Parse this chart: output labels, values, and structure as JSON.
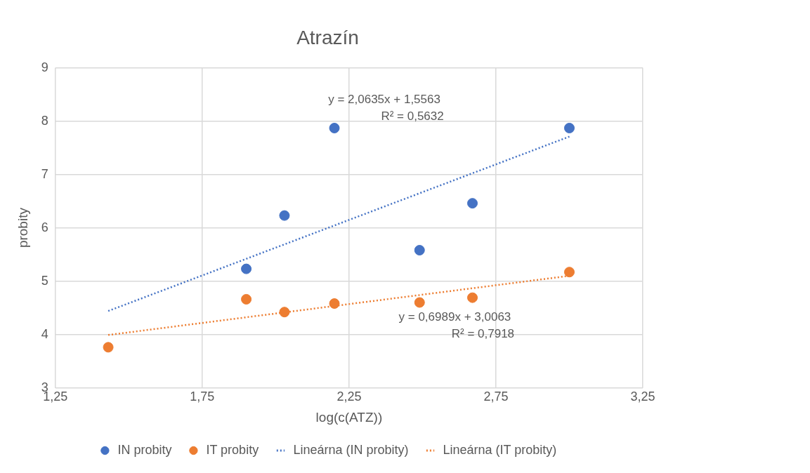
{
  "chart_data": {
    "type": "scatter",
    "title": "Atrazín",
    "xlabel": "log(c(ATZ))",
    "ylabel": "probity",
    "xlim": [
      1.25,
      3.25
    ],
    "xticks": [
      {
        "value": 1.25,
        "label": "1,25"
      },
      {
        "value": 1.75,
        "label": "1,75"
      },
      {
        "value": 2.25,
        "label": "2,25"
      },
      {
        "value": 2.75,
        "label": "2,75"
      },
      {
        "value": 3.25,
        "label": "3,25"
      }
    ],
    "ylim": [
      3,
      9
    ],
    "yticks": [
      3,
      4,
      5,
      6,
      7,
      8,
      9
    ],
    "grid": true,
    "legend": "bottom",
    "marker": "circle",
    "series": [
      {
        "name": "IN probity",
        "type": "scatter",
        "color": "#4472c4",
        "x": [
          1.9,
          2.03,
          2.2,
          2.49,
          2.67,
          3.0
        ],
        "values": [
          5.23,
          6.23,
          7.87,
          5.58,
          6.46,
          7.87
        ]
      },
      {
        "name": "IT probity",
        "type": "scatter",
        "color": "#ed7d31",
        "x": [
          1.43,
          1.9,
          2.03,
          2.2,
          2.49,
          2.67,
          3.0
        ],
        "values": [
          3.76,
          4.66,
          4.42,
          4.58,
          4.6,
          4.69,
          5.17
        ]
      },
      {
        "name": "Lineárna (IN probity)",
        "type": "line",
        "line_style": "dotted",
        "marker": "none",
        "color": "#4472c4",
        "x": [
          1.43,
          3.0
        ],
        "values": [
          4.44,
          7.71
        ]
      },
      {
        "name": "Lineárna (IT probity)",
        "type": "line",
        "line_style": "dotted",
        "marker": "none",
        "color": "#ed7d31",
        "x": [
          1.43,
          3.0
        ],
        "values": [
          3.99,
          5.1
        ]
      }
    ],
    "annotations": [
      "y = 2,0635x + 1,5563\nR² = 0,5632",
      "y = 0,6989x + 3,0063\nR² = 0,7918"
    ]
  }
}
